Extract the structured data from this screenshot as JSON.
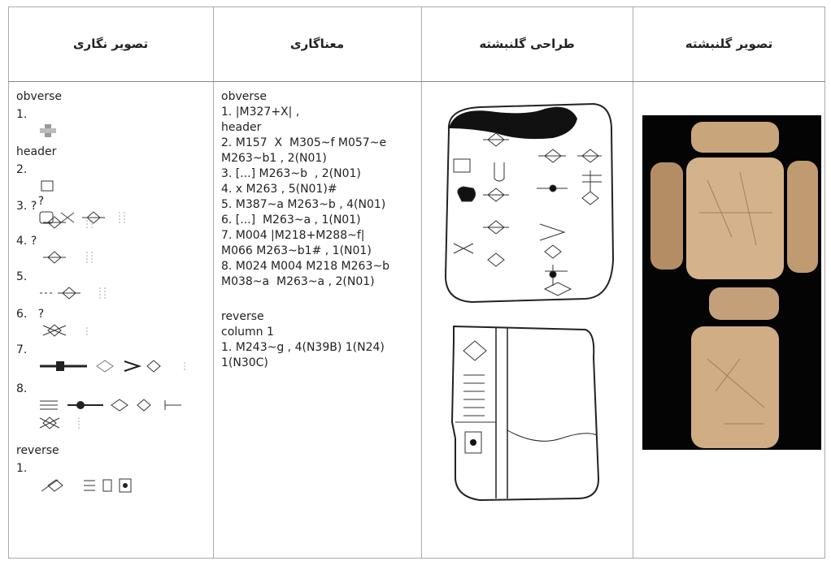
{
  "table": {
    "headers": [
      "تصویر نگاری",
      "معناگاری",
      "طراحی گلنبشته",
      "تصویر گلنبشته"
    ],
    "pictographic": [
      "obverse",
      "1.",
      "header",
      "2.",
      "?",
      "3.",
      "?",
      "4.",
      "?",
      "5.",
      "6.",
      "?",
      "7.",
      "8.",
      "reverse",
      "1."
    ],
    "transliteration": [
      "obverse",
      "1. |M327+X| ,",
      "header",
      "2. M157  X  M305~f M057~e",
      "M263~b1 , 2(N01)",
      "3. [...] M263~b  , 2(N01)",
      "4. x M263 , 5(N01)#",
      "5. M387~a M263~b , 4(N01)",
      "6. [...]  M263~a , 1(N01)",
      "7. M004 |M218+M288~f|",
      "M066 M263~b1# , 1(N01)",
      "8. M024 M004 M218 M263~b",
      "M038~a  M263~a , 2(N01)",
      "reverse",
      "column 1",
      "1. M243~g , 4(N39B) 1(N24)",
      "1(N30C)"
    ]
  }
}
